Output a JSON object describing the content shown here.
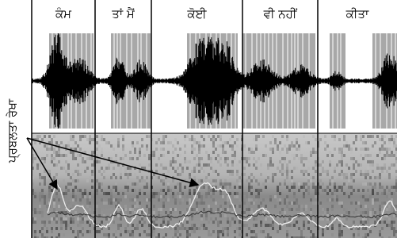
{
  "words": [
    "ਕੰਮ",
    "ਤਾਂ ਮੈਂ",
    "ਕੋਈ",
    "ਵੀ ਨਹੀਂ",
    "ਕੀਤਾ"
  ],
  "annotation": "ਪ੍ਰਬਲਤਾ ਰੇਖਾ"
}
